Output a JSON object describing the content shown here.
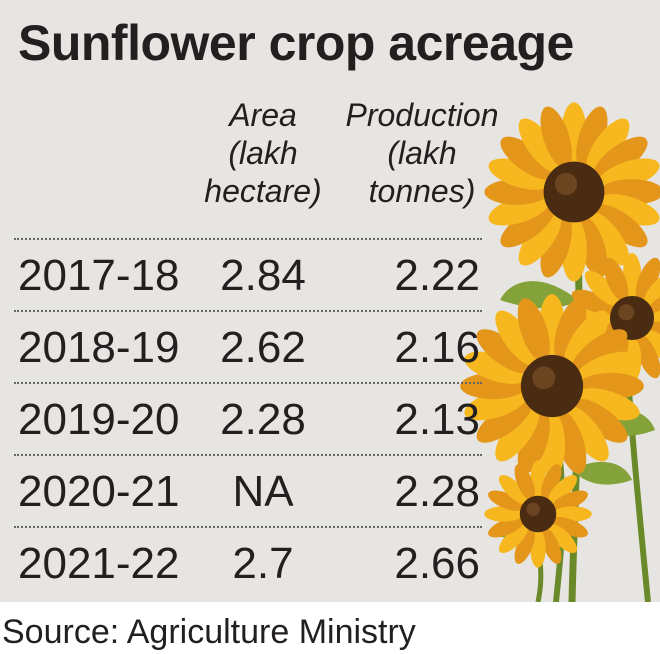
{
  "title": "Sunflower crop acreage",
  "source": "Source: Agriculture Ministry",
  "colors": {
    "panel_bg": "#e7e5e1",
    "text": "#231f20",
    "petal": "#f6b81e",
    "petal_dark": "#e3961a",
    "center": "#4a2c12",
    "stem": "#6a8a2a",
    "leaf": "#84a23a"
  },
  "chart_data": {
    "type": "table",
    "title": "Sunflower crop acreage",
    "columns": [
      {
        "key": "year",
        "label_lines": []
      },
      {
        "key": "area",
        "label_lines": [
          "Area",
          "(lakh",
          "hectare)"
        ]
      },
      {
        "key": "production",
        "label_lines": [
          "Production",
          "(lakh",
          "tonnes)"
        ]
      }
    ],
    "rows": [
      {
        "year": "2017-18",
        "area": "2.84",
        "production": "2.22"
      },
      {
        "year": "2018-19",
        "area": "2.62",
        "production": "2.16"
      },
      {
        "year": "2019-20",
        "area": "2.28",
        "production": "2.13"
      },
      {
        "year": "2020-21",
        "area": "NA",
        "production": "2.28"
      },
      {
        "year": "2021-22",
        "area": "2.7",
        "production": "2.66"
      }
    ],
    "source": "Source: Agriculture Ministry"
  }
}
